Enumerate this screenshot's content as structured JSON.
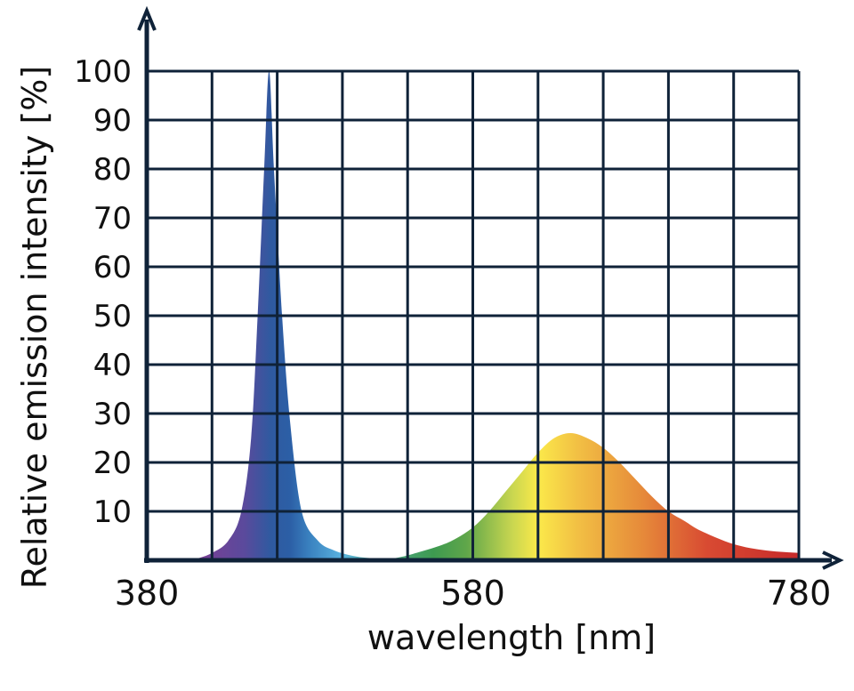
{
  "chart_data": {
    "type": "area",
    "title": "",
    "xlabel": "wavelength [nm]",
    "ylabel": "Relative emission intensity [%]",
    "xlim": [
      380,
      780
    ],
    "ylim": [
      0,
      100
    ],
    "x_ticks": [
      380,
      580,
      780
    ],
    "x_grid": [
      380,
      420,
      460,
      500,
      540,
      580,
      620,
      660,
      700,
      740,
      780
    ],
    "y_ticks": [
      10,
      20,
      30,
      40,
      50,
      60,
      70,
      80,
      90,
      100
    ],
    "grid": true,
    "axis_color": "#0f2238",
    "fill": "visible-spectrum gradient (violet → blue → green → yellow → orange → red)",
    "series": [
      {
        "x": [
          400,
          410,
          420,
          430,
          438,
          444,
          448,
          452,
          455,
          458,
          463,
          468,
          475,
          485,
          495,
          505,
          515,
          530
        ],
        "y": [
          0,
          0.3,
          1.5,
          4,
          10,
          25,
          50,
          80,
          100,
          80,
          50,
          28,
          10,
          4,
          2,
          1,
          0.5,
          0.3
        ]
      },
      {
        "x": [
          530,
          540,
          560,
          570,
          580,
          590,
          600,
          610,
          620,
          630,
          640,
          650,
          660,
          670,
          680,
          690,
          700,
          710,
          720,
          740,
          760,
          780
        ],
        "y": [
          0.3,
          1,
          3,
          4.5,
          6.7,
          10,
          14,
          18,
          22,
          25,
          26,
          25,
          23,
          20,
          16.5,
          13,
          10,
          8,
          6,
          3.3,
          2,
          1.5
        ]
      }
    ]
  }
}
